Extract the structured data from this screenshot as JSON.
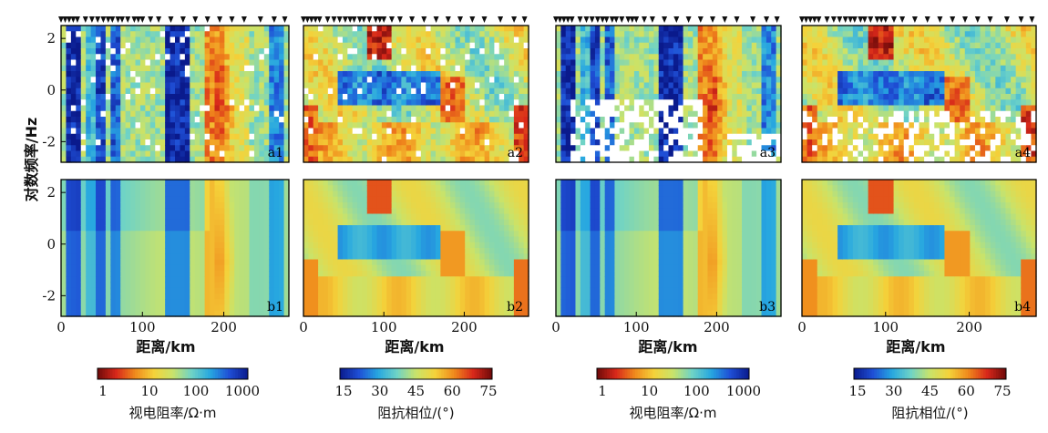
{
  "figure": {
    "ylabel": "对数频率/Hz",
    "xlabel": "距离/km"
  },
  "chart_data": {
    "type": "heatmap",
    "description_axes": {
      "x_ticks": [
        "0",
        "100",
        "200"
      ],
      "x_range_km": [
        0,
        280
      ],
      "y_ticks": [
        "2",
        "0",
        "-2"
      ],
      "y_range_log10_hz": [
        -2.8,
        2.5
      ]
    },
    "stations_km": [
      0,
      5,
      10,
      15,
      20,
      30,
      38,
      45,
      52,
      58,
      63,
      70,
      75,
      82,
      90,
      95,
      100,
      110,
      120,
      135,
      150,
      165,
      180,
      195,
      210,
      225,
      245,
      262,
      275
    ],
    "panels": [
      {
        "id": "a1",
        "quantity": "rho",
        "observed": true
      },
      {
        "id": "a2",
        "quantity": "phase",
        "observed": true
      },
      {
        "id": "a3",
        "quantity": "rho",
        "observed": true
      },
      {
        "id": "a4",
        "quantity": "phase",
        "observed": true
      },
      {
        "id": "b1",
        "quantity": "rho",
        "observed": false
      },
      {
        "id": "b2",
        "quantity": "phase",
        "observed": false
      },
      {
        "id": "b3",
        "quantity": "rho",
        "observed": false
      },
      {
        "id": "b4",
        "quantity": "phase",
        "observed": false
      }
    ],
    "colorbars": [
      {
        "ticks": [
          "1",
          "10",
          "100",
          "1000"
        ],
        "title": "视电阻率/Ω·m",
        "reversed": true
      },
      {
        "ticks": [
          "15",
          "30",
          "45",
          "60",
          "75"
        ],
        "title": "阻抗相位/(°)",
        "reversed": false
      },
      {
        "ticks": [
          "1",
          "10",
          "100",
          "1000"
        ],
        "title": "视电阻率/Ω·m",
        "reversed": true
      },
      {
        "ticks": [
          "15",
          "30",
          "45",
          "60",
          "75"
        ],
        "title": "阻抗相位/(°)",
        "reversed": false
      }
    ],
    "colormap": [
      "#0a1a8c",
      "#1f4fd6",
      "#27a7e0",
      "#6fd3c6",
      "#c9e36a",
      "#f4d23a",
      "#f08a1c",
      "#d8281a",
      "#6e0a0a"
    ]
  }
}
